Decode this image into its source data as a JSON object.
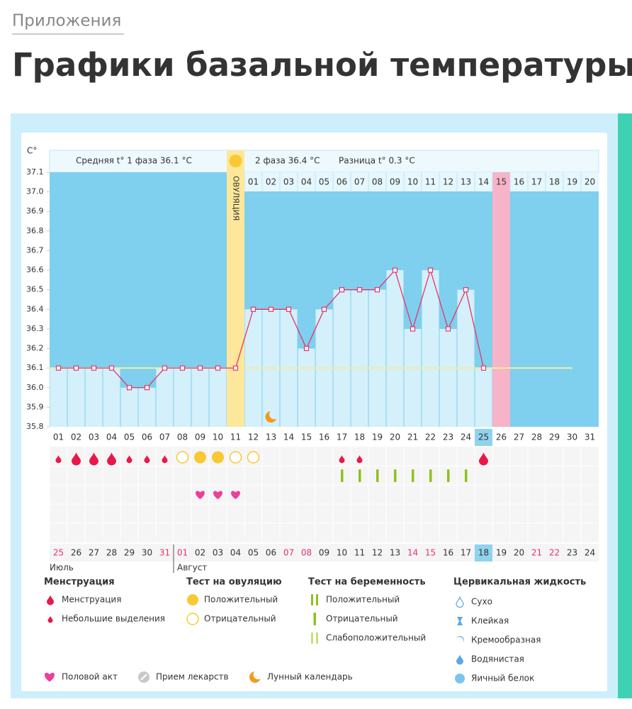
{
  "header": {
    "category": "Приложения",
    "title": "Графики базальной температуры"
  },
  "chart_data": {
    "type": "line",
    "y_label": "C°",
    "phase1_text": "Средняя t° 1 фаза 36.1 °C",
    "phase2_text": "2 фаза 36.4 °C",
    "diff_text": "Разница t° 0.3 °C",
    "ovulation_label": "ОВУЛЯЦИЯ",
    "ovulation_day": "11",
    "current_day": "25",
    "expected_period_day": "15",
    "categories": [
      "01",
      "02",
      "03",
      "04",
      "05",
      "06",
      "07",
      "08",
      "09",
      "10",
      "11",
      "12",
      "13",
      "14",
      "15",
      "16",
      "17",
      "18",
      "19",
      "20",
      "21",
      "22",
      "23",
      "24",
      "25",
      "26",
      "27",
      "28",
      "29",
      "30",
      "31"
    ],
    "values": [
      36.1,
      36.1,
      36.1,
      36.1,
      36.0,
      36.0,
      36.1,
      36.1,
      36.1,
      36.1,
      36.1,
      36.4,
      36.4,
      36.4,
      36.2,
      36.4,
      36.5,
      36.5,
      36.5,
      36.6,
      36.3,
      36.6,
      36.3,
      36.5,
      36.1,
      null,
      null,
      null,
      null,
      null,
      null
    ],
    "coverline": 36.1,
    "line_color": "#e8336b",
    "bar_color": "#d3f0fb",
    "background_color": "#7fcfee",
    "coverline_color": "#f4ee97",
    "ylim": [
      35.8,
      37.1
    ],
    "yticks": [
      35.8,
      35.9,
      {
        "value": 36.0,
        "label": "36.0"
      },
      36.1,
      36.2,
      36.3,
      36.4,
      36.5,
      36.6,
      36.7,
      36.8,
      36.9,
      {
        "value": 37.0,
        "label": "37.0"
      },
      37.1
    ],
    "grid": false,
    "phase2_days": [
      "01",
      "02",
      "03",
      "04",
      "05",
      "06",
      "07",
      "08",
      "09",
      "10",
      "11",
      "12",
      "13",
      "14",
      "15",
      "16",
      "17",
      "18",
      "19",
      "20"
    ],
    "dates": [
      {
        "label": "25",
        "color": "#e8336b"
      },
      {
        "label": "26",
        "color": "#333333"
      },
      {
        "label": "27",
        "color": "#333333"
      },
      {
        "label": "28",
        "color": "#333333"
      },
      {
        "label": "29",
        "color": "#333333"
      },
      {
        "label": "30",
        "color": "#333333"
      },
      {
        "label": "31",
        "color": "#e8336b"
      },
      {
        "label": "01",
        "color": "#e8336b"
      },
      {
        "label": "02",
        "color": "#333333"
      },
      {
        "label": "03",
        "color": "#333333"
      },
      {
        "label": "04",
        "color": "#333333"
      },
      {
        "label": "05",
        "color": "#333333"
      },
      {
        "label": "06",
        "color": "#333333"
      },
      {
        "label": "07",
        "color": "#e8336b"
      },
      {
        "label": "08",
        "color": "#e8336b"
      },
      {
        "label": "09",
        "color": "#333333"
      },
      {
        "label": "10",
        "color": "#333333"
      },
      {
        "label": "11",
        "color": "#333333"
      },
      {
        "label": "12",
        "color": "#333333"
      },
      {
        "label": "13",
        "color": "#333333"
      },
      {
        "label": "14",
        "color": "#e8336b"
      },
      {
        "label": "15",
        "color": "#e8336b"
      },
      {
        "label": "16",
        "color": "#333333"
      },
      {
        "label": "17",
        "color": "#333333"
      },
      {
        "label": "18",
        "color": "#333333"
      },
      {
        "label": "19",
        "color": "#333333"
      },
      {
        "label": "20",
        "color": "#333333"
      },
      {
        "label": "21",
        "color": "#e8336b"
      },
      {
        "label": "22",
        "color": "#e8336b"
      },
      {
        "label": "23",
        "color": "#333333"
      },
      {
        "label": "24",
        "color": "#333333"
      }
    ],
    "current_date": "18",
    "months": [
      "Июль",
      "Август"
    ],
    "menstruation": [
      "light",
      "heavy",
      "heavy",
      "heavy",
      "light",
      "light",
      "light",
      null,
      null,
      null,
      null,
      null,
      null,
      null,
      null,
      null,
      "light",
      "light",
      null,
      null,
      null,
      null,
      null,
      null,
      "heavy",
      null,
      null,
      null,
      null,
      null,
      null
    ],
    "ovulation_test": [
      null,
      null,
      null,
      null,
      null,
      null,
      null,
      "negative",
      "positive",
      "positive",
      "negative",
      "negative",
      null,
      null,
      null,
      null,
      null,
      null,
      null,
      null,
      null,
      null,
      null,
      null,
      null,
      null,
      null,
      null,
      null,
      null,
      null
    ],
    "pregnancy_test": [
      null,
      null,
      null,
      null,
      null,
      null,
      null,
      null,
      null,
      null,
      null,
      null,
      null,
      null,
      null,
      null,
      "negative",
      "negative",
      "negative",
      "negative",
      "negative",
      "negative",
      "negative",
      "negative",
      null,
      null,
      null,
      null,
      null,
      null,
      null
    ],
    "intercourse": [
      null,
      null,
      null,
      null,
      null,
      null,
      null,
      null,
      true,
      true,
      true,
      null,
      null,
      null,
      null,
      null,
      null,
      null,
      null,
      null,
      null,
      null,
      null,
      null,
      null,
      null,
      null,
      null,
      null,
      null,
      null
    ],
    "lunar": [
      null,
      null,
      null,
      null,
      null,
      null,
      null,
      null,
      null,
      null,
      null,
      null,
      true,
      null,
      null,
      null,
      null,
      null,
      null,
      null,
      null,
      null,
      null,
      null,
      null,
      null,
      null,
      null,
      null,
      null,
      null
    ],
    "legend": {
      "groups": [
        {
          "title": "Менструация",
          "items": [
            "Менструация",
            "Небольшие выделения"
          ]
        },
        {
          "title": "Тест на овуляцию",
          "items": [
            "Положительный",
            "Отрицательный"
          ]
        },
        {
          "title": "Тест на беременность",
          "items": [
            "Положительный",
            "Отрицательный",
            "Слабоположительный"
          ]
        },
        {
          "title": "Цервикальная жидкость",
          "items": [
            "Сухо",
            "Клейкая",
            "Кремообразная",
            "Водянистая",
            "Яичный белок"
          ]
        }
      ],
      "other": [
        "Половой акт",
        "Прием лекарств",
        "Лунный календарь"
      ]
    }
  }
}
